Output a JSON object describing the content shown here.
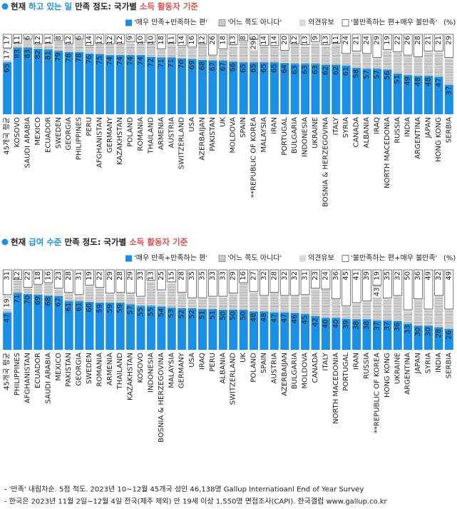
{
  "chart_data": [
    {
      "type": "stacked_bar_100",
      "title_parts": [
        {
          "text": "현재 ",
          "color": "#222222"
        },
        {
          "text": "하고 있는 일",
          "color": "#1a8fe3"
        },
        {
          "text": " 만족 정도: 국가별 ",
          "color": "#222222"
        },
        {
          "text": "소득 활동자 기준",
          "color": "#d9534f"
        }
      ],
      "unit": "(%)",
      "ylim": [
        0,
        100
      ],
      "categories": [
        "45개국 평균",
        "KOSOVO",
        "SAUDI ARABIA",
        "MEXICO",
        "ECUADOR",
        "SWEDEN",
        "GEORGIA",
        "PHILIPPINES",
        "PERU",
        "AFGHANISTAN",
        "GERMANY",
        "KAZAKHSTAN",
        "POLAND",
        "ROMANIA",
        "THAILAND",
        "ARMENIA",
        "AUSTRIA",
        "SWITZERLAND",
        "USA",
        "AZERBAIJAN",
        "PAKISTAN",
        "UK",
        "MOLDOVA",
        "SPAIN",
        "**REPUBLIC OF KOREA",
        "MALAYSIA",
        "IRAN",
        "PORTUGAL",
        "BULGARIA",
        "INDONESIA",
        "UKRAINE",
        "BOSNIA & HERZEGOVINA",
        "ITALY",
        "SYRIA",
        "CANADA",
        "ALBANIA",
        "IRAQ",
        "NORTH MACEDONIA",
        "RUSSIA",
        "INDIA",
        "ARGENTINA",
        "JAPAN",
        "HONG KONG",
        "SERBIA"
      ],
      "series": [
        {
          "name": "'매우 만족+만족하는 편'",
          "color": "#1a8fe3",
          "show_values": true,
          "values": [
            65,
            83,
            83,
            82,
            81,
            79,
            78,
            78,
            76,
            75,
            74,
            74,
            74,
            74,
            72,
            71,
            71,
            70,
            69,
            68,
            67,
            67,
            66,
            65,
            65,
            65,
            65,
            64,
            63,
            63,
            63,
            62,
            62,
            61,
            58,
            57,
            57,
            56,
            51,
            49,
            48,
            48,
            47,
            37
          ]
        },
        {
          "name": "'어느 쪽도 아니다'",
          "color": "#8c8c8c",
          "hatch": true,
          "values": [
            17,
            4,
            9,
            4,
            6,
            11,
            8,
            14,
            8,
            11,
            12,
            12,
            15,
            14,
            16,
            9,
            16,
            14,
            13,
            18,
            5,
            13,
            19,
            25,
            29,
            19,
            19,
            14,
            23,
            22,
            26,
            23,
            25,
            13,
            19,
            17,
            12,
            23,
            25,
            23,
            22,
            29,
            30,
            32
          ],
          "value_labels": [
            "17",
            null,
            null,
            null,
            null,
            null,
            null,
            null,
            null,
            null,
            null,
            null,
            null,
            null,
            null,
            null,
            null,
            null,
            null,
            null,
            null,
            null,
            null,
            null,
            "29",
            null,
            null,
            null,
            null,
            null,
            null,
            null,
            null,
            null,
            null,
            null,
            null,
            null,
            null,
            null,
            null,
            null,
            null,
            null
          ]
        },
        {
          "name": "의견유보",
          "color": "#d9d9d9",
          "values": [
            1,
            2,
            2,
            2,
            2,
            2,
            2,
            2,
            2,
            2,
            2,
            2,
            2,
            2,
            2,
            2,
            2,
            2,
            2,
            2,
            2,
            2,
            2,
            2,
            0,
            2,
            2,
            2,
            2,
            2,
            2,
            2,
            2,
            2,
            2,
            2,
            2,
            2,
            2,
            2,
            2,
            2,
            2,
            2
          ]
        },
        {
          "name": "'불만족하는 편+매우 불만족'",
          "color": "#ffffff",
          "outline": "#555555",
          "show_values": true,
          "values": [
            17,
            11,
            6,
            12,
            11,
            8,
            12,
            6,
            14,
            12,
            12,
            12,
            9,
            10,
            10,
            18,
            11,
            14,
            16,
            12,
            26,
            18,
            13,
            8,
            6,
            14,
            14,
            20,
            12,
            13,
            9,
            13,
            11,
            24,
            21,
            24,
            29,
            19,
            22,
            26,
            28,
            21,
            21,
            29
          ]
        }
      ]
    },
    {
      "type": "stacked_bar_100",
      "title_parts": [
        {
          "text": "현재 ",
          "color": "#222222"
        },
        {
          "text": "급여 수준",
          "color": "#1a8fe3"
        },
        {
          "text": " 만족 정도: 국가별 ",
          "color": "#222222"
        },
        {
          "text": "소득 활동자 기준",
          "color": "#d9534f"
        }
      ],
      "unit": "(%)",
      "ylim": [
        0,
        100
      ],
      "categories": [
        "45개국 평균",
        "PHILIPPINES",
        "AFGHANISTAN",
        "ECUADOR",
        "SAUDI ARABIA",
        "MEXICO",
        "PAKISTAN",
        "GEORGIA",
        "SWEDEN",
        "ROMANIA",
        "ARMENIA",
        "THAILAND",
        "KAZAKHSTAN",
        "KOSOVO",
        "INDONESIA",
        "BOSNIA & HERZEGOVINA",
        "MALAYSIA",
        "GERMANY",
        "USA",
        "IRAQ",
        "PERU",
        "ALBANIA",
        "SWITZERLAND",
        "UK",
        "POLAND",
        "SPAIN",
        "AUSTRIA",
        "AZERBAIJAN",
        "BULGARIA",
        "MOLDOVA",
        "CANADA",
        "ITALY",
        "NORTH MACEDONIA",
        "PORTUGAL",
        "IRAN",
        "RUSSIA",
        "**REPUBLIC OF KOREA",
        "HONG KONG",
        "UKRAINE",
        "ARGENTINA",
        "JAPAN",
        "SYRIA",
        "INDIA",
        "SERBIA"
      ],
      "series": [
        {
          "name": "'매우 만족+만족하는 편'",
          "color": "#1a8fe3",
          "show_values": true,
          "values": [
            47,
            71,
            70,
            69,
            68,
            67,
            61,
            61,
            60,
            59,
            59,
            59,
            57,
            55,
            55,
            54,
            53,
            52,
            52,
            51,
            51,
            50,
            50,
            50,
            48,
            48,
            47,
            47,
            46,
            45,
            42,
            40,
            40,
            39,
            38,
            38,
            37,
            37,
            36,
            33,
            30,
            30,
            28,
            26
          ]
        },
        {
          "name": "'어느 쪽도 아니다'",
          "color": "#8c8c8c",
          "hatch": true,
          "values": [
            19,
            15,
            6,
            11,
            14,
            8,
            9,
            6,
            19,
            17,
            10,
            11,
            12,
            10,
            30,
            19,
            30,
            18,
            11,
            12,
            14,
            15,
            19,
            32,
            23,
            18,
            23,
            19,
            20,
            22,
            33,
            34,
            22,
            14,
            19,
            21,
            43,
            26,
            30,
            15,
            32,
            19,
            38,
            23
          ],
          "value_labels": [
            "19",
            null,
            null,
            null,
            null,
            null,
            null,
            null,
            null,
            null,
            null,
            null,
            null,
            null,
            null,
            null,
            null,
            null,
            null,
            null,
            null,
            null,
            null,
            null,
            null,
            null,
            null,
            null,
            null,
            null,
            null,
            null,
            null,
            null,
            null,
            null,
            "43",
            null,
            null,
            null,
            null,
            null,
            null,
            null
          ]
        },
        {
          "name": "의견유보",
          "color": "#d9d9d9",
          "values": [
            3,
            2,
            2,
            2,
            2,
            2,
            2,
            2,
            2,
            2,
            2,
            2,
            2,
            2,
            2,
            2,
            2,
            2,
            2,
            2,
            2,
            2,
            2,
            2,
            2,
            2,
            2,
            2,
            2,
            2,
            2,
            2,
            2,
            2,
            2,
            2,
            1,
            2,
            2,
            2,
            2,
            2,
            2,
            2
          ]
        },
        {
          "name": "'불만족하는 편+매우 불만족'",
          "color": "#ffffff",
          "outline": "#555555",
          "show_values": true,
          "values": [
            31,
            12,
            22,
            18,
            16,
            23,
            28,
            31,
            19,
            22,
            29,
            28,
            29,
            33,
            13,
            25,
            15,
            28,
            35,
            35,
            33,
            33,
            29,
            16,
            27,
            32,
            28,
            32,
            32,
            31,
            23,
            24,
            36,
            45,
            41,
            39,
            19,
            35,
            32,
            50,
            36,
            49,
            32,
            49
          ]
        }
      ]
    }
  ],
  "notes": [
    "- '만족' 내림차순. 5점 척도. 2023년 10~12월 45개국 성인 46,138명 Gallup Internatioanl End of Year Survey",
    "- 한국은 2023년 11월 2일~12월 4일 전국(제주 제외) 만 19세 이상 1,550명 면접조사(CAPI). 한국갤럽 www.gallup.co.kr"
  ]
}
